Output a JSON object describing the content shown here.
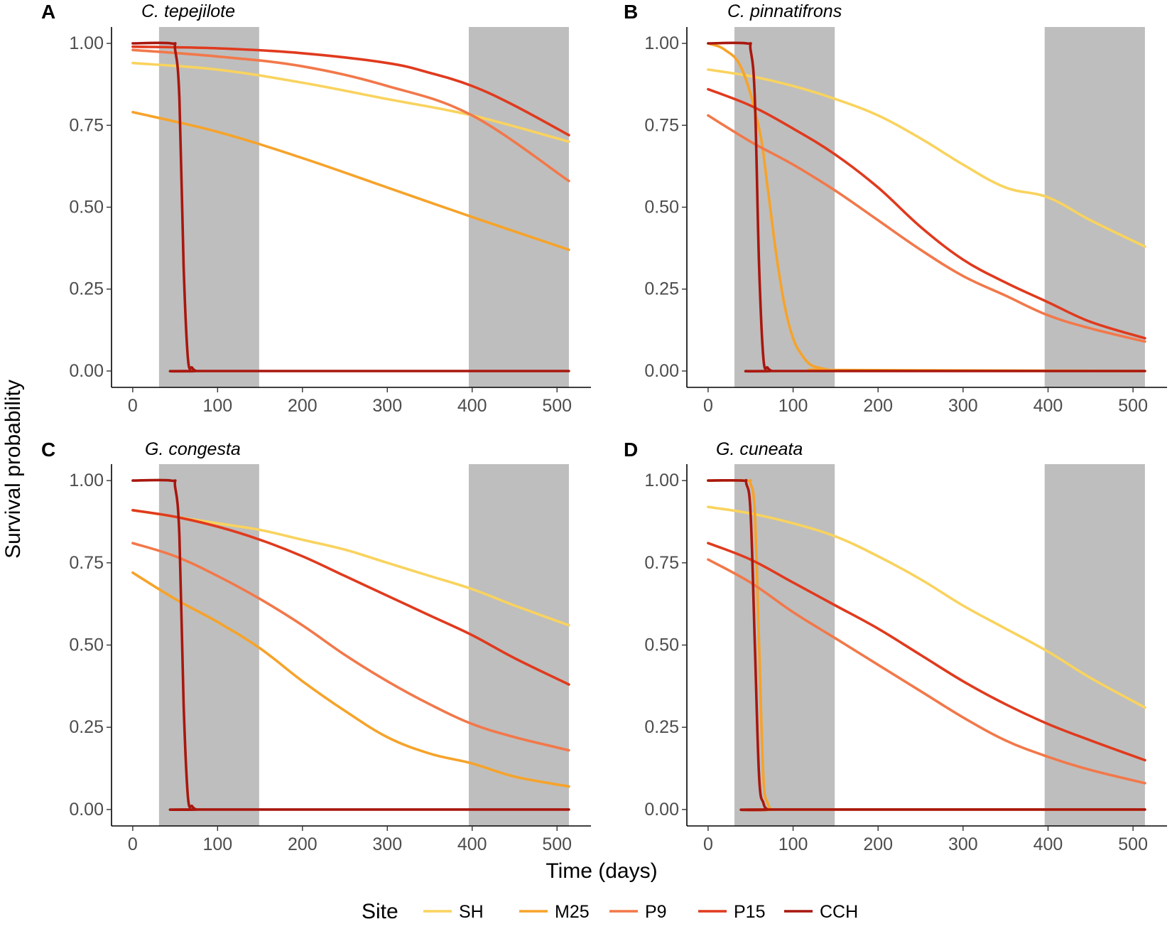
{
  "figure": {
    "xlabel": "Time (days)",
    "ylabel": "Survival probability",
    "legend": {
      "title": "Site",
      "entries": [
        {
          "label": "SH",
          "color": "#F9D35E"
        },
        {
          "label": "M25",
          "color": "#F6A32A"
        },
        {
          "label": "P9",
          "color": "#F2784A"
        },
        {
          "label": "P15",
          "color": "#E03A1E"
        },
        {
          "label": "CCH",
          "color": "#A8170E"
        }
      ]
    }
  },
  "chart_data": [
    {
      "type": "line",
      "panel": "A",
      "title": "C. tepejilote",
      "xlabel": "Time (days)",
      "ylabel": "Survival probability",
      "xlim": [
        -25,
        540
      ],
      "ylim": [
        -0.05,
        1.05
      ],
      "xticks": [
        0,
        100,
        200,
        300,
        400,
        500
      ],
      "yticks": [
        0,
        0.25,
        0.5,
        0.75,
        1.0
      ],
      "xtick_labels": [
        "0",
        "100",
        "200",
        "300",
        "400",
        "500"
      ],
      "ytick_labels": [
        "0.00",
        "0.25",
        "0.50",
        "0.75",
        "1.00"
      ],
      "shaded_intervals": [
        [
          31,
          149
        ],
        [
          396,
          514
        ]
      ],
      "series": [
        {
          "name": "SH",
          "x": [
            0,
            100,
            200,
            300,
            400,
            514
          ],
          "y": [
            0.94,
            0.92,
            0.88,
            0.83,
            0.78,
            0.7
          ]
        },
        {
          "name": "M25",
          "x": [
            0,
            100,
            200,
            300,
            400,
            514
          ],
          "y": [
            0.79,
            0.73,
            0.65,
            0.56,
            0.47,
            0.37
          ]
        },
        {
          "name": "P9",
          "x": [
            0,
            100,
            200,
            300,
            400,
            514
          ],
          "y": [
            0.98,
            0.96,
            0.93,
            0.87,
            0.78,
            0.58
          ]
        },
        {
          "name": "P15",
          "x": [
            0,
            100,
            200,
            300,
            350,
            400,
            450,
            514
          ],
          "y": [
            0.99,
            0.985,
            0.97,
            0.94,
            0.91,
            0.87,
            0.81,
            0.72
          ]
        },
        {
          "name": "CCH",
          "x": [
            0,
            45,
            50,
            55,
            60,
            65,
            70,
            75,
            80,
            514
          ],
          "y": [
            1.0,
            1.0,
            0.98,
            0.83,
            0.32,
            0.04,
            0.01,
            0.0,
            0.0,
            0.0
          ]
        }
      ]
    },
    {
      "type": "line",
      "panel": "B",
      "title": "C. pinnatifrons",
      "xlabel": "Time (days)",
      "ylabel": "Survival probability",
      "xlim": [
        -25,
        540
      ],
      "ylim": [
        -0.05,
        1.05
      ],
      "xticks": [
        0,
        100,
        200,
        300,
        400,
        500
      ],
      "yticks": [
        0,
        0.25,
        0.5,
        0.75,
        1.0
      ],
      "xtick_labels": [
        "0",
        "100",
        "200",
        "300",
        "400",
        "500"
      ],
      "ytick_labels": [
        "0.00",
        "0.25",
        "0.50",
        "0.75",
        "1.00"
      ],
      "shaded_intervals": [
        [
          31,
          149
        ],
        [
          396,
          514
        ]
      ],
      "series": [
        {
          "name": "SH",
          "x": [
            0,
            50,
            100,
            150,
            200,
            250,
            300,
            350,
            400,
            450,
            514
          ],
          "y": [
            0.92,
            0.9,
            0.87,
            0.83,
            0.78,
            0.71,
            0.63,
            0.56,
            0.53,
            0.46,
            0.38
          ]
        },
        {
          "name": "M25",
          "x": [
            0,
            20,
            40,
            60,
            70,
            80,
            90,
            100,
            110,
            120,
            130,
            140,
            150,
            514
          ],
          "y": [
            1.0,
            0.98,
            0.92,
            0.74,
            0.56,
            0.36,
            0.2,
            0.1,
            0.05,
            0.02,
            0.01,
            0.005,
            0.003,
            0.0
          ]
        },
        {
          "name": "P9",
          "x": [
            0,
            50,
            100,
            150,
            200,
            250,
            300,
            350,
            400,
            450,
            514
          ],
          "y": [
            0.78,
            0.7,
            0.63,
            0.55,
            0.46,
            0.37,
            0.29,
            0.23,
            0.17,
            0.13,
            0.09
          ]
        },
        {
          "name": "P15",
          "x": [
            0,
            50,
            100,
            150,
            200,
            250,
            300,
            350,
            400,
            450,
            514
          ],
          "y": [
            0.86,
            0.81,
            0.74,
            0.66,
            0.56,
            0.44,
            0.34,
            0.27,
            0.21,
            0.15,
            0.1
          ]
        },
        {
          "name": "CCH",
          "x": [
            0,
            45,
            50,
            55,
            60,
            65,
            70,
            75,
            80,
            514
          ],
          "y": [
            1.0,
            1.0,
            0.98,
            0.83,
            0.32,
            0.04,
            0.01,
            0.0,
            0.0,
            0.0
          ]
        }
      ]
    },
    {
      "type": "line",
      "panel": "C",
      "title": "G. congesta",
      "xlabel": "Time (days)",
      "ylabel": "Survival probability",
      "xlim": [
        -25,
        540
      ],
      "ylim": [
        -0.05,
        1.05
      ],
      "xticks": [
        0,
        100,
        200,
        300,
        400,
        500
      ],
      "yticks": [
        0,
        0.25,
        0.5,
        0.75,
        1.0
      ],
      "xtick_labels": [
        "0",
        "100",
        "200",
        "300",
        "400",
        "500"
      ],
      "ytick_labels": [
        "0.00",
        "0.25",
        "0.50",
        "0.75",
        "1.00"
      ],
      "shaded_intervals": [
        [
          31,
          149
        ],
        [
          396,
          514
        ]
      ],
      "series": [
        {
          "name": "SH",
          "x": [
            0,
            50,
            100,
            150,
            200,
            250,
            300,
            350,
            400,
            450,
            514
          ],
          "y": [
            0.91,
            0.89,
            0.87,
            0.85,
            0.82,
            0.79,
            0.75,
            0.71,
            0.67,
            0.62,
            0.56
          ]
        },
        {
          "name": "M25",
          "x": [
            0,
            50,
            100,
            150,
            200,
            250,
            300,
            350,
            400,
            450,
            514
          ],
          "y": [
            0.72,
            0.64,
            0.57,
            0.49,
            0.39,
            0.3,
            0.22,
            0.17,
            0.14,
            0.1,
            0.07
          ]
        },
        {
          "name": "P9",
          "x": [
            0,
            50,
            100,
            150,
            200,
            250,
            300,
            350,
            400,
            450,
            514
          ],
          "y": [
            0.81,
            0.77,
            0.71,
            0.64,
            0.56,
            0.47,
            0.39,
            0.32,
            0.26,
            0.22,
            0.18
          ]
        },
        {
          "name": "P15",
          "x": [
            0,
            50,
            100,
            150,
            200,
            250,
            300,
            350,
            400,
            450,
            514
          ],
          "y": [
            0.91,
            0.89,
            0.86,
            0.82,
            0.77,
            0.71,
            0.65,
            0.59,
            0.53,
            0.46,
            0.38
          ]
        },
        {
          "name": "CCH",
          "x": [
            0,
            45,
            50,
            55,
            60,
            65,
            70,
            75,
            80,
            514
          ],
          "y": [
            1.0,
            1.0,
            0.98,
            0.83,
            0.32,
            0.04,
            0.01,
            0.0,
            0.0,
            0.0
          ]
        }
      ]
    },
    {
      "type": "line",
      "panel": "D",
      "title": "G. cuneata",
      "xlabel": "Time (days)",
      "ylabel": "Survival probability",
      "xlim": [
        -25,
        540
      ],
      "ylim": [
        -0.05,
        1.05
      ],
      "xticks": [
        0,
        100,
        200,
        300,
        400,
        500
      ],
      "yticks": [
        0,
        0.25,
        0.5,
        0.75,
        1.0
      ],
      "xtick_labels": [
        "0",
        "100",
        "200",
        "300",
        "400",
        "500"
      ],
      "ytick_labels": [
        "0.00",
        "0.25",
        "0.50",
        "0.75",
        "1.00"
      ],
      "shaded_intervals": [
        [
          31,
          149
        ],
        [
          396,
          514
        ]
      ],
      "series": [
        {
          "name": "SH",
          "x": [
            0,
            50,
            100,
            150,
            200,
            250,
            300,
            350,
            400,
            450,
            514
          ],
          "y": [
            0.92,
            0.9,
            0.87,
            0.83,
            0.77,
            0.7,
            0.62,
            0.55,
            0.48,
            0.4,
            0.31
          ]
        },
        {
          "name": "M25",
          "x": [
            0,
            45,
            50,
            55,
            60,
            65,
            70,
            75,
            80,
            514
          ],
          "y": [
            1.0,
            1.0,
            0.99,
            0.9,
            0.5,
            0.1,
            0.02,
            0.0,
            0.0,
            0.0
          ]
        },
        {
          "name": "P9",
          "x": [
            0,
            50,
            100,
            150,
            200,
            250,
            300,
            350,
            400,
            450,
            514
          ],
          "y": [
            0.76,
            0.69,
            0.6,
            0.52,
            0.44,
            0.36,
            0.28,
            0.21,
            0.16,
            0.12,
            0.08
          ]
        },
        {
          "name": "P15",
          "x": [
            0,
            50,
            100,
            150,
            200,
            250,
            300,
            350,
            400,
            450,
            514
          ],
          "y": [
            0.81,
            0.76,
            0.69,
            0.62,
            0.55,
            0.47,
            0.39,
            0.32,
            0.26,
            0.21,
            0.15
          ]
        },
        {
          "name": "CCH",
          "x": [
            0,
            40,
            45,
            50,
            55,
            60,
            65,
            70,
            75,
            514
          ],
          "y": [
            1.0,
            1.0,
            0.99,
            0.9,
            0.5,
            0.1,
            0.02,
            0.0,
            0.0,
            0.0
          ]
        }
      ]
    }
  ]
}
